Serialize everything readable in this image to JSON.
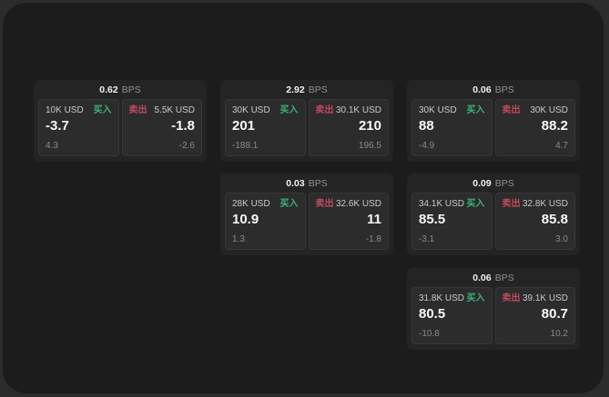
{
  "labels": {
    "buy": "买入",
    "sell": "卖出",
    "bps": "BPS"
  },
  "colors": {
    "buy_green": "#3cb377",
    "sell_red": "#c04a5e",
    "window_bg": "#1c1c1c",
    "card_bg": "#242424",
    "panel_bg": "#2c2c2c"
  },
  "cards": [
    {
      "bps": "0.62",
      "buy": {
        "amount": "10K USD",
        "value": "-3.7",
        "delta": "4.3"
      },
      "sell": {
        "amount": "5.5K USD",
        "value": "-1.8",
        "delta": "-2.6"
      }
    },
    {
      "bps": "2.92",
      "buy": {
        "amount": "30K USD",
        "value": "201",
        "delta": "-188.1"
      },
      "sell": {
        "amount": "30.1K USD",
        "value": "210",
        "delta": "196.5"
      }
    },
    {
      "bps": "0.06",
      "buy": {
        "amount": "30K USD",
        "value": "88",
        "delta": "-4.9"
      },
      "sell": {
        "amount": "30K USD",
        "value": "88.2",
        "delta": "4.7"
      }
    },
    {
      "bps": "0.03",
      "buy": {
        "amount": "28K USD",
        "value": "10.9",
        "delta": "1.3"
      },
      "sell": {
        "amount": "32.6K USD",
        "value": "11",
        "delta": "-1.8"
      }
    },
    {
      "bps": "0.09",
      "buy": {
        "amount": "34.1K USD",
        "value": "85.5",
        "delta": "-3.1"
      },
      "sell": {
        "amount": "32.8K USD",
        "value": "85.8",
        "delta": "3.0"
      }
    },
    {
      "bps": "0.06",
      "buy": {
        "amount": "31.8K USD",
        "value": "80.5",
        "delta": "-10.8"
      },
      "sell": {
        "amount": "39.1K USD",
        "value": "80.7",
        "delta": "10.2"
      }
    }
  ]
}
